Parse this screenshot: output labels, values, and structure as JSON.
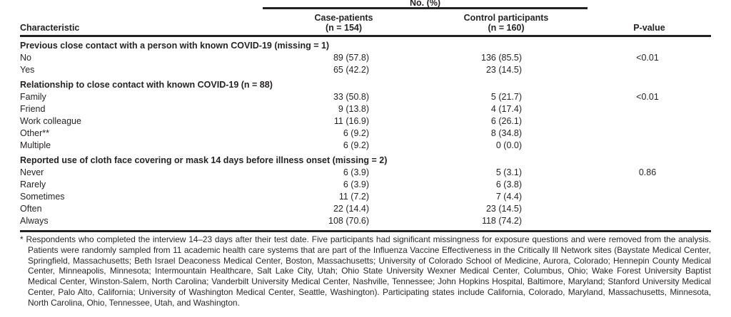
{
  "colors": {
    "background": "#ffffff",
    "text": "#262324",
    "rule": "#232021"
  },
  "table": {
    "spanner_label": "No. (%)",
    "columns": {
      "characteristic": "Characteristic",
      "case_label": "Case-patients",
      "case_n": "(n = 154)",
      "control_label": "Control participants",
      "control_n": "(n = 160)",
      "pvalue": "P-value"
    },
    "sections": [
      {
        "header": "Previous close contact with a person with known COVID-19 (missing = 1)",
        "rows": [
          {
            "label": "No",
            "case": "89 (57.8)",
            "control": "136 (85.5)",
            "p": "<0.01"
          },
          {
            "label": "Yes",
            "case": "65 (42.2)",
            "control": "23 (14.5)",
            "p": ""
          }
        ]
      },
      {
        "header": "Relationship to close contact with known COVID-19 (n = 88)",
        "rows": [
          {
            "label": "Family",
            "case": "33 (50.8)",
            "control": "5 (21.7)",
            "p": "<0.01"
          },
          {
            "label": "Friend",
            "case": "9 (13.8)",
            "control": "4 (17.4)",
            "p": ""
          },
          {
            "label": "Work colleague",
            "case": "11 (16.9)",
            "control": "6 (26.1)",
            "p": ""
          },
          {
            "label": "Other**",
            "case": "6 (9.2)",
            "control": "8 (34.8)",
            "p": ""
          },
          {
            "label": "Multiple",
            "case": "6 (9.2)",
            "control": "0 (0.0)",
            "p": ""
          }
        ]
      },
      {
        "header": "Reported use of cloth face covering or mask 14 days before illness onset (missing = 2)",
        "rows": [
          {
            "label": "Never",
            "case": "6 (3.9)",
            "control": "5 (3.1)",
            "p": "0.86"
          },
          {
            "label": "Rarely",
            "case": "6 (3.9)",
            "control": "6 (3.8)",
            "p": ""
          },
          {
            "label": "Sometimes",
            "case": "11 (7.2)",
            "control": "7 (4.4)",
            "p": ""
          },
          {
            "label": "Often",
            "case": "22 (14.4)",
            "control": "23 (14.5)",
            "p": ""
          },
          {
            "label": "Always",
            "case": "108 (70.6)",
            "control": "118 (74.2)",
            "p": ""
          }
        ]
      }
    ]
  },
  "footnote": {
    "marker": "*",
    "text": "Respondents who completed the interview 14–23 days after their test date. Five participants had significant missingness for exposure questions and were removed from the analysis. Patients were randomly sampled from 11 academic health care systems that are part of the Influenza Vaccine Effectiveness in the Critically Ill Network sites (Baystate Medical Center, Springfield, Massachusetts; Beth Israel Deaconess Medical Center, Boston, Massachusetts; University of Colorado School of Medicine, Aurora, Colorado; Hennepin County Medical Center, Minneapolis, Minnesota; Intermountain Healthcare, Salt Lake City, Utah; Ohio State University Wexner Medical Center, Columbus, Ohio; Wake Forest University Baptist Medical Center, Winston-Salem, North Carolina; Vanderbilt University Medical Center, Nashville, Tennessee; John Hopkins Hospital, Baltimore, Maryland; Stanford University Medical Center, Palo Alto, California; University of Washington Medical Center, Seattle, Washington). Participating states include California, Colorado, Maryland, Massachusetts, Minnesota, North Carolina, Ohio, Tennessee, Utah, and Washington."
  }
}
